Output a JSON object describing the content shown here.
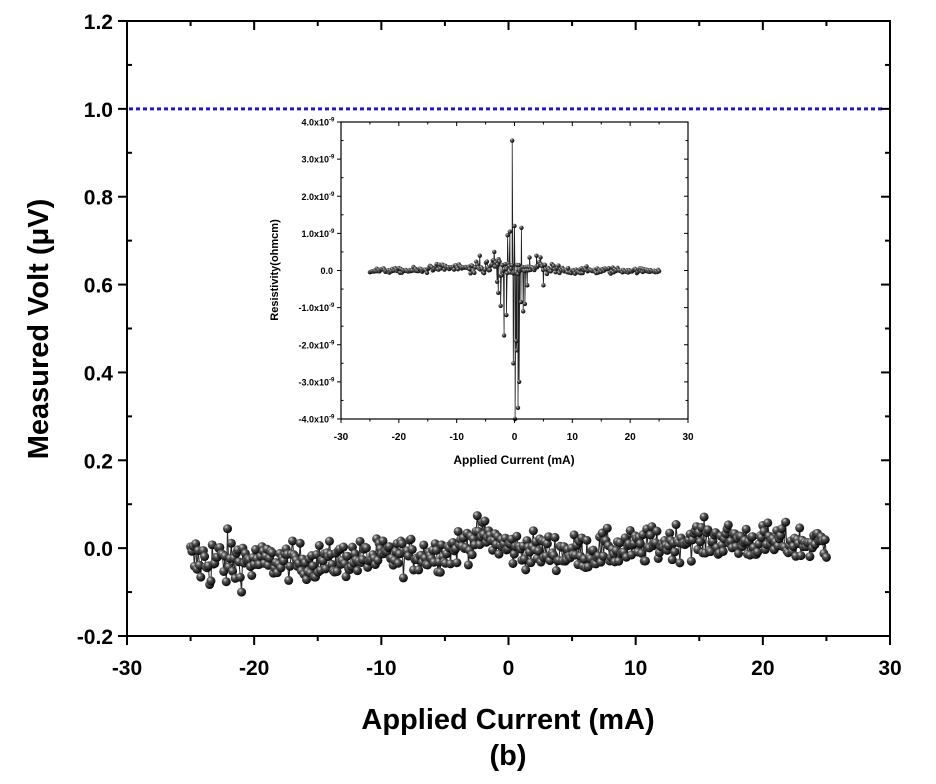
{
  "chart_data": [
    {
      "id": "main",
      "type": "scatter",
      "title": "",
      "caption": "(b)",
      "xlabel": "Applied Current (mA)",
      "ylabel": "Measured Volt (μV)",
      "xlim": [
        -30,
        30
      ],
      "ylim": [
        -0.2,
        1.2
      ],
      "xticks": [
        -30,
        -20,
        -10,
        0,
        10,
        20,
        30
      ],
      "xtick_labels": [
        "-30",
        "-20",
        "-10",
        "0",
        "10",
        "20",
        "30"
      ],
      "yticks": [
        -0.2,
        0.0,
        0.2,
        0.4,
        0.6,
        0.8,
        1.0,
        1.2
      ],
      "ytick_labels": [
        "-0.2",
        "0.0",
        "0.2",
        "0.4",
        "0.6",
        "0.8",
        "1.0",
        "1.2"
      ],
      "grid": false,
      "reference_line": {
        "y": 1.0,
        "style": "dotted",
        "color": "#1a1acc"
      },
      "series": [
        {
          "name": "Measured Volt",
          "marker": "sphere",
          "color": "#111111",
          "x_range": [
            -25,
            25
          ],
          "n_points": 500,
          "trend": [
            {
              "x": -25,
              "y": -0.03
            },
            {
              "x": -15,
              "y": -0.03
            },
            {
              "x": -5,
              "y": -0.01
            },
            {
              "x": -2,
              "y": 0.03
            },
            {
              "x": 0,
              "y": 0.0
            },
            {
              "x": 5,
              "y": -0.01
            },
            {
              "x": 10,
              "y": 0.0
            },
            {
              "x": 14,
              "y": 0.02
            },
            {
              "x": 25,
              "y": 0.01
            }
          ],
          "noise_amplitude": 0.035,
          "y_min_observed": -0.1,
          "y_max_observed": 0.08
        }
      ]
    },
    {
      "id": "inset",
      "type": "scatter",
      "xlabel": "Applied Current (mA)",
      "ylabel": "Resistivity(ohmcm)",
      "xlim": [
        -30,
        30
      ],
      "ylim": [
        -4e-09,
        4e-09
      ],
      "xticks": [
        -30,
        -20,
        -10,
        0,
        10,
        20,
        30
      ],
      "xtick_labels": [
        "-30",
        "-20",
        "-10",
        "0",
        "10",
        "20",
        "30"
      ],
      "yticks": [
        -4e-09,
        -3e-09,
        -2e-09,
        -1e-09,
        0,
        1e-09,
        2e-09,
        3e-09,
        4e-09
      ],
      "ytick_labels": [
        "-4.0x10",
        "-3.0x10",
        "-2.0x10",
        "-1.0x10",
        "0.0",
        "1.0x10",
        "2.0x10",
        "3.0x10",
        "4.0x10"
      ],
      "ytick_exponent": "-9",
      "grid": false,
      "series": [
        {
          "name": "Resistivity",
          "marker": "sphere",
          "color": "#111111",
          "x_range": [
            -25,
            25
          ],
          "n_points": 300,
          "baseline_noise": 1e-10,
          "spikes": [
            {
              "x": -6.0,
              "y": 4e-10
            },
            {
              "x": -3.5,
              "y": 5e-10
            },
            {
              "x": -3.0,
              "y": -3e-10
            },
            {
              "x": -2.8,
              "y": -6e-10
            },
            {
              "x": -2.4,
              "y": -9.5e-10
            },
            {
              "x": -1.8,
              "y": -1.75e-09
            },
            {
              "x": -1.4,
              "y": -1.2e-09
            },
            {
              "x": -1.2,
              "y": 9.5e-10
            },
            {
              "x": -0.8,
              "y": 1.05e-09
            },
            {
              "x": -0.4,
              "y": 3.5e-09
            },
            {
              "x": -0.2,
              "y": -2.5e-09
            },
            {
              "x": 0.0,
              "y": 1.2e-09
            },
            {
              "x": 0.1,
              "y": -4e-09
            },
            {
              "x": 0.3,
              "y": -1.9e-09
            },
            {
              "x": 0.4,
              "y": -2.15e-09
            },
            {
              "x": 0.6,
              "y": -3.7e-09
            },
            {
              "x": 0.8,
              "y": -3e-09
            },
            {
              "x": 1.1,
              "y": -8.5e-10
            },
            {
              "x": 1.2,
              "y": 1.15e-09
            },
            {
              "x": 1.5,
              "y": -1.1e-09
            },
            {
              "x": 1.8,
              "y": -9e-10
            },
            {
              "x": 2.2,
              "y": -4e-10
            },
            {
              "x": 2.6,
              "y": 3.5e-10
            },
            {
              "x": 3.8,
              "y": 4e-10
            },
            {
              "x": 4.5,
              "y": 3.5e-10
            },
            {
              "x": 5.0,
              "y": -4e-10
            }
          ]
        }
      ]
    }
  ]
}
